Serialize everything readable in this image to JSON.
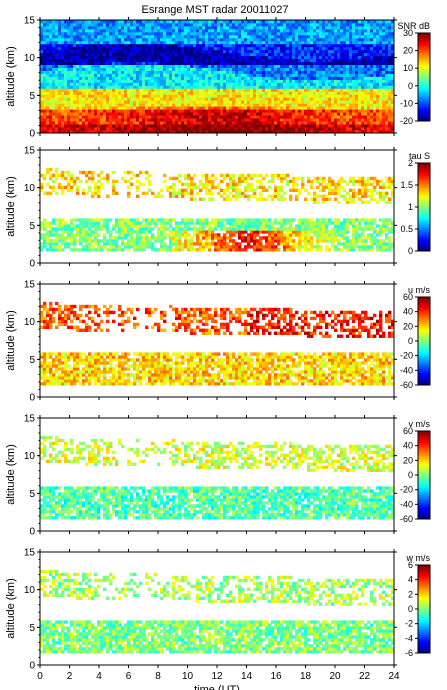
{
  "title": "Esrange MST radar 20011027",
  "chart_data": {
    "type": "heatmap",
    "title": "Esrange MST radar 20011027",
    "xlabel": "time (UT)",
    "xlim": [
      0,
      24
    ],
    "xticks": [
      "0",
      "2",
      "4",
      "6",
      "8",
      "10",
      "12",
      "14",
      "16",
      "18",
      "20",
      "22",
      "24"
    ],
    "panels": [
      {
        "id": "snr",
        "ylabel": "altitude (km)",
        "ylim": [
          0,
          15
        ],
        "yticks": [
          "0",
          "5",
          "10",
          "15"
        ],
        "colorbar_label": "SNR dB",
        "clim": [
          -20,
          30
        ],
        "colorbar_ticks": [
          "30",
          "20",
          "10",
          "0",
          "-10",
          "-20"
        ],
        "layers": [
          {
            "alt_range": [
              0,
              1
            ],
            "typical_value": 25
          },
          {
            "alt_range": [
              1,
              3
            ],
            "typical_value": 20
          },
          {
            "alt_range": [
              3,
              6
            ],
            "typical_value": 12
          },
          {
            "alt_range": [
              6,
              9
            ],
            "typical_value": -2
          },
          {
            "alt_range": [
              9,
              12
            ],
            "typical_value": -12
          },
          {
            "alt_range": [
              12,
              15
            ],
            "typical_value": -6
          }
        ]
      },
      {
        "id": "tau",
        "ylabel": "altitude (km)",
        "ylim": [
          0,
          15
        ],
        "yticks": [
          "0",
          "5",
          "10",
          "15"
        ],
        "colorbar_label": "tau S",
        "clim": [
          0,
          2
        ],
        "colorbar_ticks": [
          "2",
          "1.5",
          "1",
          "0.5",
          "0"
        ],
        "layers": [
          {
            "alt_range": [
              1.5,
              6
            ],
            "typical_value": 1.0
          },
          {
            "alt_range": [
              9,
              12.5
            ],
            "typical_value": 1.3
          }
        ]
      },
      {
        "id": "u",
        "ylabel": "altitude (km)",
        "ylim": [
          0,
          15
        ],
        "yticks": [
          "0",
          "5",
          "10",
          "15"
        ],
        "colorbar_label": "u m/s",
        "clim": [
          -60,
          60
        ],
        "colorbar_ticks": [
          "60",
          "40",
          "20",
          "0",
          "-20",
          "-40",
          "-60"
        ],
        "layers": [
          {
            "alt_range": [
              1.5,
              6
            ],
            "typical_value": 20
          },
          {
            "alt_range": [
              9,
              12.5
            ],
            "typical_value": 35
          }
        ]
      },
      {
        "id": "v",
        "ylabel": "altitude (km)",
        "ylim": [
          0,
          15
        ],
        "yticks": [
          "0",
          "5",
          "10",
          "15"
        ],
        "colorbar_label": "v m/s",
        "clim": [
          -60,
          60
        ],
        "colorbar_ticks": [
          "60",
          "40",
          "20",
          "0",
          "-20",
          "-40",
          "-60"
        ],
        "layers": [
          {
            "alt_range": [
              1.5,
              6
            ],
            "typical_value": -5
          },
          {
            "alt_range": [
              9,
              12.5
            ],
            "typical_value": 10
          }
        ]
      },
      {
        "id": "w",
        "ylabel": "altitude (km)",
        "ylim": [
          0,
          15
        ],
        "yticks": [
          "0",
          "5",
          "10",
          "15"
        ],
        "colorbar_label": "w m/s",
        "clim": [
          -6,
          6
        ],
        "colorbar_ticks": [
          "6",
          "4",
          "2",
          "0",
          "-2",
          "-4",
          "-6"
        ],
        "layers": [
          {
            "alt_range": [
              1.5,
              6
            ],
            "typical_value": 0
          },
          {
            "alt_range": [
              9,
              12.5
            ],
            "typical_value": 0.5
          }
        ]
      }
    ]
  }
}
